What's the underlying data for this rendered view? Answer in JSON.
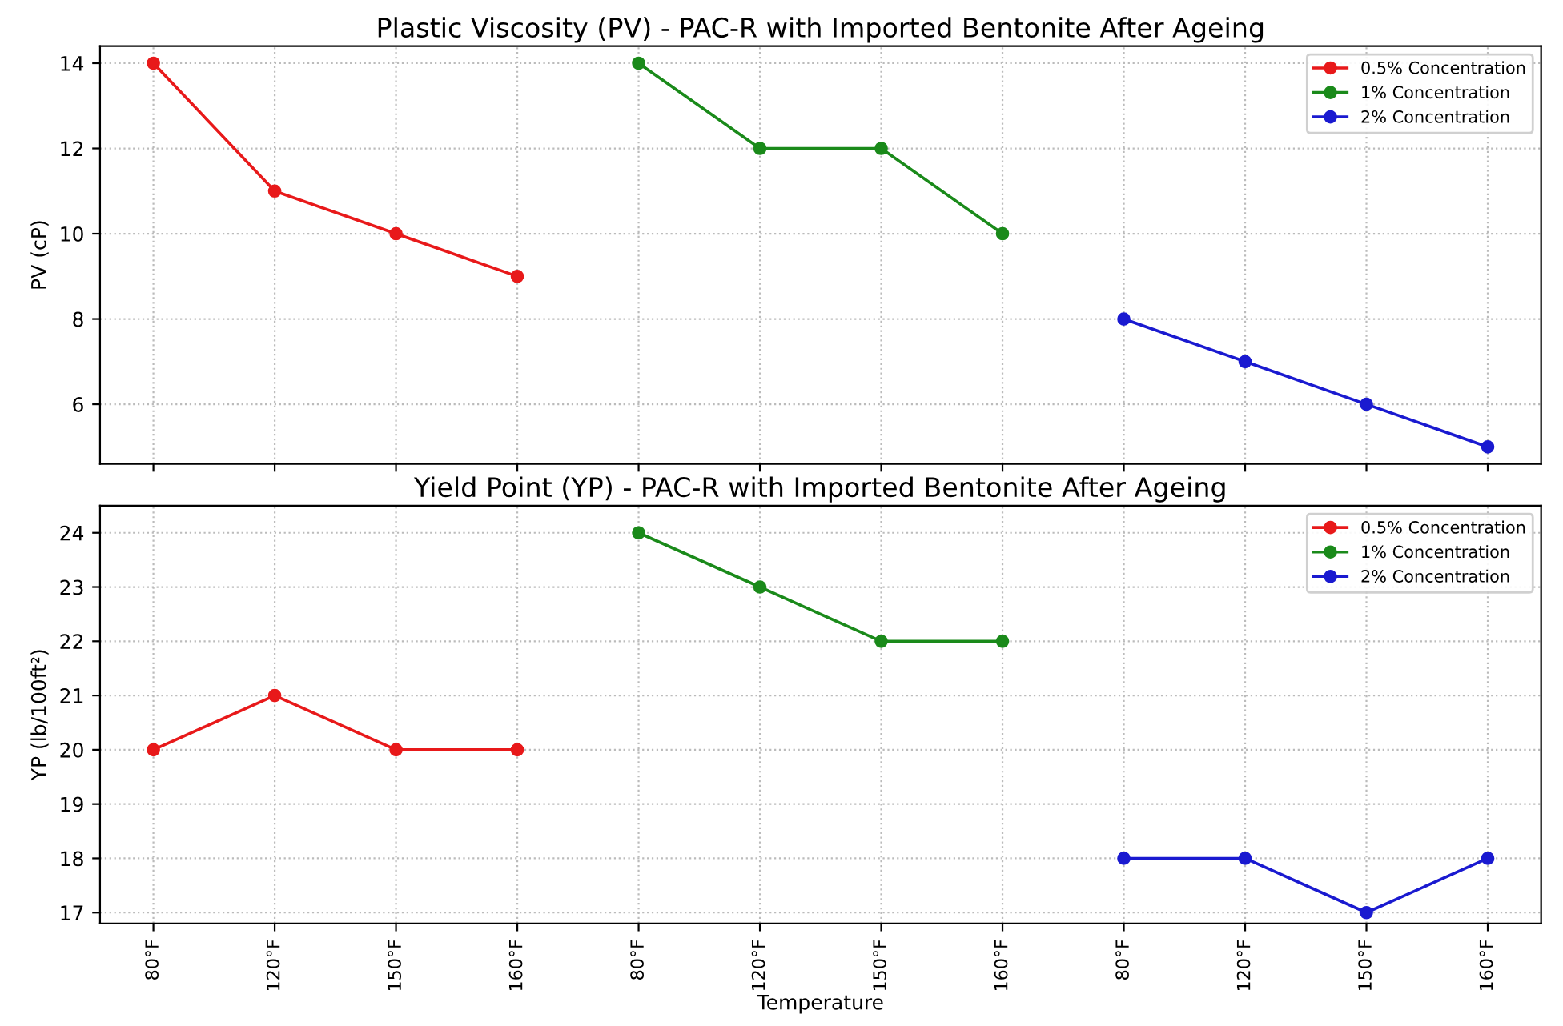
{
  "chart_data": [
    {
      "type": "line",
      "title": "Plastic Viscosity (PV) - PAC-R with Imported Bentonite After Ageing",
      "ylabel": "PV (cP)",
      "categories": [
        null,
        null,
        null,
        null,
        null,
        null,
        null,
        null,
        null,
        null,
        null,
        null
      ],
      "series": [
        {
          "name": "0.5% Concentration",
          "color": "#e8191a",
          "values": [
            14,
            11,
            10,
            9,
            null,
            null,
            null,
            null,
            null,
            null,
            null,
            null
          ]
        },
        {
          "name": "1% Concentration",
          "color": "#1a8a1a",
          "values": [
            null,
            null,
            null,
            null,
            14,
            12,
            12,
            10,
            null,
            null,
            null,
            null
          ]
        },
        {
          "name": "2% Concentration",
          "color": "#1a1ad0",
          "values": [
            null,
            null,
            null,
            null,
            null,
            null,
            null,
            null,
            8,
            7,
            6,
            5
          ]
        }
      ],
      "ylim": [
        4.6,
        14.4
      ],
      "yticks": [
        6,
        8,
        10,
        12,
        14
      ],
      "grid": true,
      "legend": "top right",
      "marker": "circle",
      "line_style": "solid",
      "tick_labels": "y"
    },
    {
      "type": "line",
      "title": "Yield Point (YP) - PAC-R with Imported Bentonite After Ageing",
      "xlabel": "Temperature",
      "ylabel": "YP (lb/100ft²)",
      "categories": [
        "80°F",
        "120°F",
        "150°F",
        "160°F",
        "80°F",
        "120°F",
        "150°F",
        "160°F",
        "80°F",
        "120°F",
        "150°F",
        "160°F"
      ],
      "series": [
        {
          "name": "0.5% Concentration",
          "color": "#e8191a",
          "values": [
            20,
            21,
            20,
            20,
            null,
            null,
            null,
            null,
            null,
            null,
            null,
            null
          ]
        },
        {
          "name": "1% Concentration",
          "color": "#1a8a1a",
          "values": [
            null,
            null,
            null,
            null,
            24,
            23,
            22,
            22,
            null,
            null,
            null,
            null
          ]
        },
        {
          "name": "2% Concentration",
          "color": "#1a1ad0",
          "values": [
            null,
            null,
            null,
            null,
            null,
            null,
            null,
            null,
            18,
            18,
            17,
            18
          ]
        }
      ],
      "ylim": [
        16.8,
        24.5
      ],
      "yticks": [
        17,
        18,
        19,
        20,
        21,
        22,
        23,
        24
      ],
      "grid": true,
      "legend": "top right",
      "marker": "circle",
      "line_style": "solid"
    }
  ]
}
